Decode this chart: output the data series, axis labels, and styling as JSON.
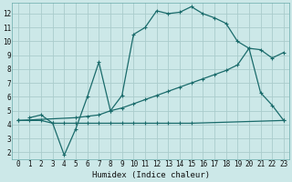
{
  "xlabel": "Humidex (Indice chaleur)",
  "background_color": "#cce8e8",
  "grid_color": "#aacccc",
  "line_color": "#1a6b6b",
  "xlim": [
    -0.5,
    23.5
  ],
  "ylim": [
    1.5,
    12.8
  ],
  "xticks": [
    0,
    1,
    2,
    3,
    4,
    5,
    6,
    7,
    8,
    9,
    10,
    11,
    12,
    13,
    14,
    15,
    16,
    17,
    18,
    19,
    20,
    21,
    22,
    23
  ],
  "yticks": [
    2,
    3,
    4,
    5,
    6,
    7,
    8,
    9,
    10,
    11,
    12
  ],
  "line1_x": [
    1,
    2,
    3,
    4,
    5,
    6,
    7,
    8,
    9,
    10,
    11,
    12,
    13,
    14,
    15,
    16,
    17,
    18,
    19,
    20,
    21,
    22,
    23
  ],
  "line1_y": [
    4.5,
    4.7,
    4.1,
    1.8,
    3.7,
    6.0,
    8.5,
    5.0,
    6.1,
    10.5,
    11.0,
    12.2,
    12.0,
    12.1,
    12.5,
    12.0,
    11.7,
    11.3,
    10.0,
    9.5,
    6.3,
    5.4,
    4.3
  ],
  "line2_x": [
    0,
    1,
    2,
    3,
    4,
    5,
    6,
    7,
    8,
    9,
    10,
    11,
    12,
    13,
    14,
    15,
    23
  ],
  "line2_y": [
    4.3,
    4.3,
    4.3,
    4.1,
    4.1,
    4.1,
    4.1,
    4.1,
    4.1,
    4.1,
    4.1,
    4.1,
    4.1,
    4.1,
    4.1,
    4.1,
    4.3
  ],
  "line3_x": [
    0,
    5,
    6,
    7,
    8,
    9,
    10,
    11,
    12,
    13,
    14,
    15,
    16,
    17,
    18,
    19,
    20,
    21,
    22,
    23
  ],
  "line3_y": [
    4.3,
    4.5,
    4.6,
    4.7,
    5.0,
    5.2,
    5.5,
    5.8,
    6.1,
    6.4,
    6.7,
    7.0,
    7.3,
    7.6,
    7.9,
    8.3,
    9.5,
    9.4,
    8.8,
    9.2
  ]
}
